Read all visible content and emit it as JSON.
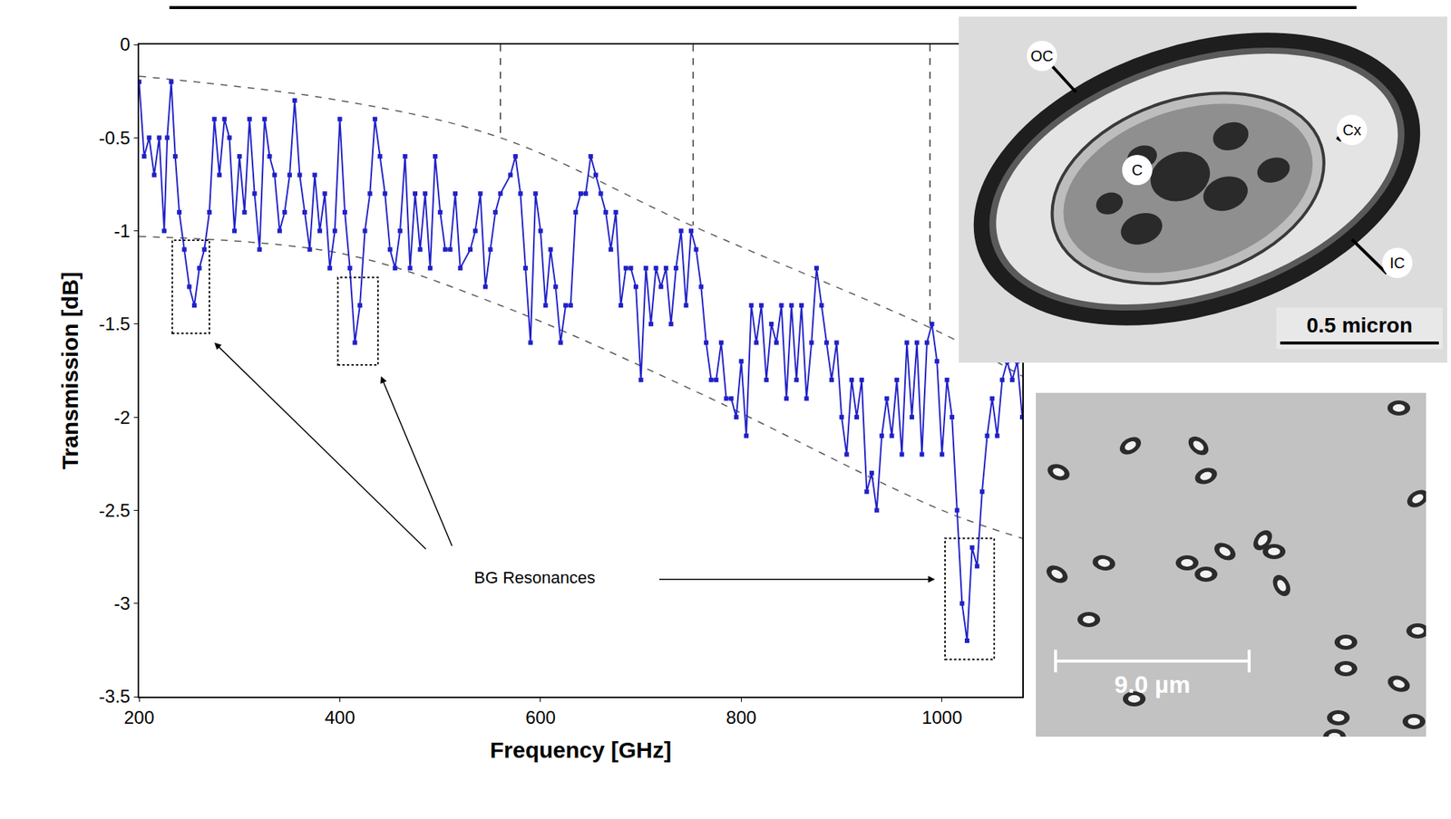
{
  "chart_data": {
    "type": "line",
    "x_label": "Frequency [GHz]",
    "y_label": "Transmission [dB]",
    "color": "#2121c8",
    "marker": "square",
    "line_style": "solid",
    "grid": false,
    "xlim": [
      200,
      1080
    ],
    "ylim": [
      -3.5,
      0
    ],
    "xticks": [
      200,
      400,
      600,
      800,
      1000
    ],
    "yticks": [
      0,
      -0.5,
      -1,
      -1.5,
      -2,
      -2.5,
      -3,
      -3.5
    ],
    "x": [
      200,
      205,
      210,
      215,
      220,
      225,
      228,
      232,
      236,
      240,
      245,
      250,
      255,
      260,
      265,
      270,
      275,
      280,
      285,
      290,
      295,
      300,
      305,
      310,
      315,
      320,
      325,
      330,
      335,
      340,
      345,
      350,
      355,
      360,
      365,
      370,
      375,
      380,
      385,
      390,
      395,
      400,
      405,
      410,
      415,
      420,
      425,
      430,
      435,
      440,
      445,
      450,
      455,
      460,
      465,
      470,
      475,
      480,
      485,
      490,
      495,
      500,
      505,
      510,
      515,
      520,
      530,
      535,
      540,
      545,
      550,
      555,
      560,
      570,
      575,
      580,
      585,
      590,
      595,
      600,
      605,
      610,
      615,
      620,
      625,
      630,
      635,
      640,
      645,
      650,
      655,
      660,
      665,
      670,
      675,
      680,
      685,
      690,
      695,
      700,
      705,
      710,
      715,
      720,
      725,
      730,
      735,
      740,
      745,
      750,
      755,
      760,
      765,
      770,
      775,
      780,
      785,
      790,
      795,
      800,
      805,
      810,
      815,
      820,
      825,
      830,
      835,
      840,
      845,
      850,
      855,
      860,
      865,
      870,
      875,
      880,
      885,
      890,
      895,
      900,
      905,
      910,
      915,
      920,
      925,
      930,
      935,
      940,
      945,
      950,
      955,
      960,
      965,
      970,
      975,
      980,
      985,
      990,
      995,
      1000,
      1005,
      1010,
      1015,
      1020,
      1025,
      1030,
      1035,
      1040,
      1045,
      1050,
      1055,
      1060,
      1065,
      1070,
      1075,
      1080
    ],
    "values": [
      -0.2,
      -0.6,
      -0.5,
      -0.7,
      -0.5,
      -1.0,
      -0.5,
      -0.2,
      -0.6,
      -0.9,
      -1.1,
      -1.3,
      -1.4,
      -1.2,
      -1.1,
      -0.9,
      -0.4,
      -0.7,
      -0.4,
      -0.5,
      -1.0,
      -0.6,
      -0.9,
      -0.4,
      -0.8,
      -1.1,
      -0.4,
      -0.6,
      -0.7,
      -1.0,
      -0.9,
      -0.7,
      -0.3,
      -0.7,
      -0.9,
      -1.1,
      -0.7,
      -1.0,
      -0.8,
      -1.2,
      -1.0,
      -0.4,
      -0.9,
      -1.2,
      -1.6,
      -1.4,
      -1.0,
      -0.8,
      -0.4,
      -0.6,
      -0.8,
      -1.1,
      -1.2,
      -1.0,
      -0.6,
      -1.2,
      -0.8,
      -1.1,
      -0.8,
      -1.2,
      -0.6,
      -0.9,
      -1.1,
      -1.1,
      -0.8,
      -1.2,
      -1.1,
      -1.0,
      -0.8,
      -1.3,
      -1.1,
      -0.9,
      -0.8,
      -0.7,
      -0.6,
      -0.8,
      -1.2,
      -1.6,
      -0.8,
      -1.0,
      -1.4,
      -1.1,
      -1.3,
      -1.6,
      -1.4,
      -1.4,
      -0.9,
      -0.8,
      -0.8,
      -0.6,
      -0.7,
      -0.8,
      -0.9,
      -1.1,
      -0.9,
      -1.4,
      -1.2,
      -1.2,
      -1.3,
      -1.8,
      -1.2,
      -1.5,
      -1.2,
      -1.3,
      -1.2,
      -1.5,
      -1.2,
      -1.0,
      -1.4,
      -1.0,
      -1.1,
      -1.3,
      -1.6,
      -1.8,
      -1.8,
      -1.6,
      -1.9,
      -1.9,
      -2.0,
      -1.7,
      -2.1,
      -1.4,
      -1.6,
      -1.4,
      -1.8,
      -1.5,
      -1.6,
      -1.4,
      -1.9,
      -1.4,
      -1.8,
      -1.4,
      -1.9,
      -1.6,
      -1.2,
      -1.4,
      -1.6,
      -1.8,
      -1.6,
      -2.0,
      -2.2,
      -1.8,
      -2.0,
      -1.8,
      -2.4,
      -2.3,
      -2.5,
      -2.1,
      -1.9,
      -2.1,
      -1.8,
      -2.2,
      -1.6,
      -2.0,
      -1.6,
      -2.2,
      -1.6,
      -1.5,
      -1.7,
      -2.2,
      -1.8,
      -2.0,
      -2.5,
      -3.0,
      -3.2,
      -2.7,
      -2.8,
      -2.4,
      -2.1,
      -1.9,
      -2.1,
      -1.8,
      -1.7,
      -1.8,
      -1.7,
      -2.0
    ],
    "envelope": [
      {
        "x": [
          200,
          400,
          560,
          750,
          1000,
          1080
        ],
        "values": [
          -0.17,
          -0.3,
          -0.5,
          -0.97,
          -1.55,
          -1.78
        ]
      },
      {
        "x": [
          200,
          400,
          560,
          750,
          1000,
          1080
        ],
        "values": [
          -1.03,
          -1.12,
          -1.4,
          -1.85,
          -2.5,
          -2.65
        ]
      }
    ],
    "reference_lines": [
      {
        "x": 560,
        "y_end": -0.5
      },
      {
        "x": 752,
        "y_end": -0.97
      },
      {
        "x": 988,
        "y_end": -1.52
      }
    ],
    "boxes": [
      {
        "x": [
          233,
          270
        ],
        "y": [
          -1.55,
          -1.05
        ]
      },
      {
        "x": [
          398,
          438
        ],
        "y": [
          -1.72,
          -1.25
        ]
      },
      {
        "x": [
          1003,
          1052
        ],
        "y": [
          -3.3,
          -2.65
        ]
      }
    ],
    "annotations": [
      {
        "text": "BG Resonances",
        "x": 594,
        "y": -2.86,
        "arrows": [
          {
            "from": [
              488,
              -2.72
            ],
            "to": [
              275,
              -1.6
            ]
          },
          {
            "from": [
              514,
              -2.72
            ],
            "to": [
              441,
              -1.78
            ]
          },
          {
            "from": [
              716,
              -2.87
            ],
            "to": [
              993,
              -2.87
            ]
          }
        ]
      }
    ]
  },
  "images": {
    "cross_section": {
      "labels": [
        "OC",
        "C",
        "Cx",
        "IC"
      ],
      "scale_bar": "0.5 micron"
    },
    "micrograph": {
      "scale_bar": "9.0 µm"
    }
  }
}
